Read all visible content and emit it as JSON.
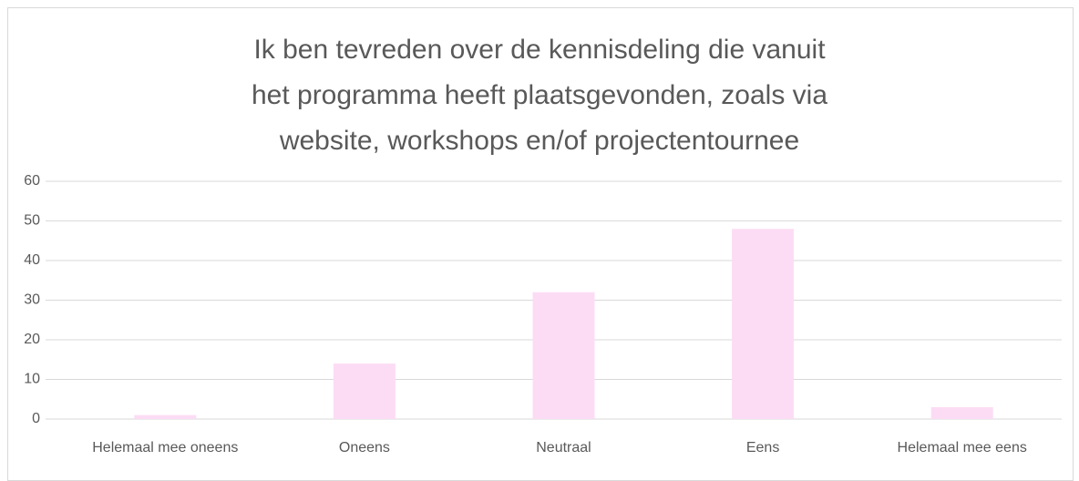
{
  "chart_data": {
    "type": "bar",
    "title": "Ik ben tevreden over de kennisdeling die vanuit het programma heeft plaatsgevonden, zoals via website, workshops en/of projectentournee",
    "categories": [
      "Helemaal mee oneens",
      "Oneens",
      "Neutraal",
      "Eens",
      "Helemaal mee eens"
    ],
    "values": [
      1,
      14,
      32,
      48,
      3
    ],
    "color": "#fcdcf4",
    "ylim": [
      0,
      60
    ],
    "yticks": [
      0,
      10,
      20,
      30,
      40,
      50,
      60
    ],
    "grid": true
  }
}
